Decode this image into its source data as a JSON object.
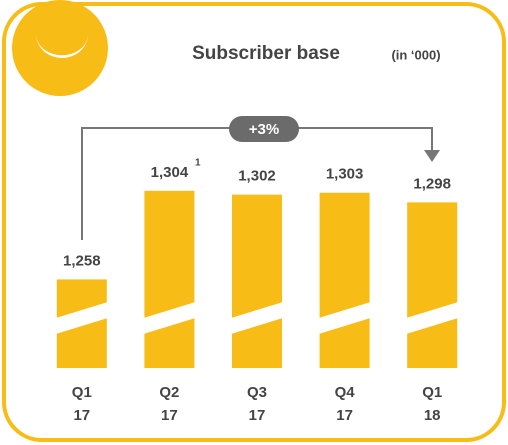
{
  "chart_data": {
    "type": "bar",
    "title": "Subscriber base",
    "subtitle": "(in ‘000)",
    "categories": [
      [
        "Q1",
        "17"
      ],
      [
        "Q2",
        "17"
      ],
      [
        "Q3",
        "17"
      ],
      [
        "Q4",
        "17"
      ],
      [
        "Q1",
        "18"
      ]
    ],
    "values": [
      1258,
      1304,
      1302,
      1303,
      1298
    ],
    "value_labels": [
      "1,258",
      "1,304",
      "1,302",
      "1,303",
      "1,298"
    ],
    "footnote_marker": "1",
    "annotation": "+3%",
    "color": "#f7bc16",
    "ylim": [
      1212,
      1320
    ]
  }
}
